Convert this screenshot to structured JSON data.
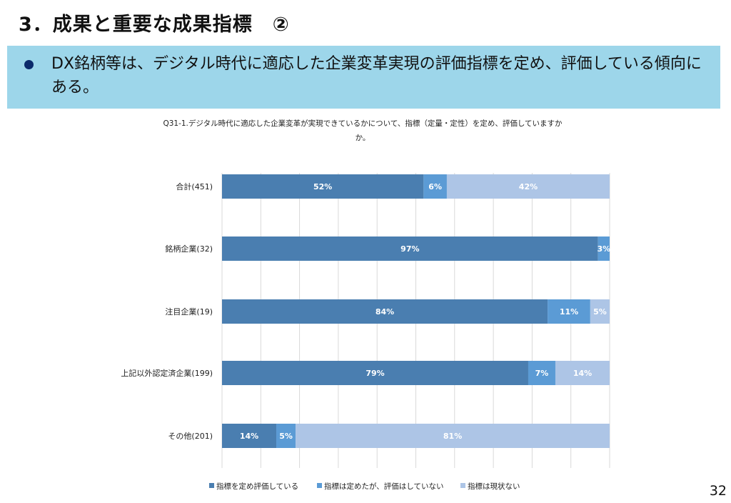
{
  "slide": {
    "title": "3．成果と重要な成果指標　②",
    "bullet_text": "DX銘柄等は、デジタル時代に適応した企業変革実現の評価指標を定め、評価している傾向にある。",
    "page_number": "32"
  },
  "chart_data": {
    "type": "bar",
    "orientation": "horizontal-stacked-100",
    "title_line1": "Q31-1.デジタル時代に適応した企業変革が実現できているかについて、指標（定量・定性）を定め、評価していますか",
    "title_line2": "か。",
    "categories": [
      "合計(451)",
      "銘柄企業(32)",
      "注目企業(19)",
      "上記以外認定済企業(199)",
      "その他(201)"
    ],
    "series": [
      {
        "name": "指標を定め評価している",
        "color": "#4a7eb0",
        "values": [
          52,
          97,
          84,
          79,
          14
        ]
      },
      {
        "name": "指標は定めたが、評価はしていない",
        "color": "#5b9bd5",
        "values": [
          6,
          3,
          11,
          7,
          5
        ]
      },
      {
        "name": "指標は現状ない",
        "color": "#adc5e6",
        "values": [
          42,
          0,
          5,
          14,
          81
        ]
      }
    ],
    "xlim": [
      0,
      100
    ],
    "grid": true,
    "legend_position": "bottom"
  }
}
